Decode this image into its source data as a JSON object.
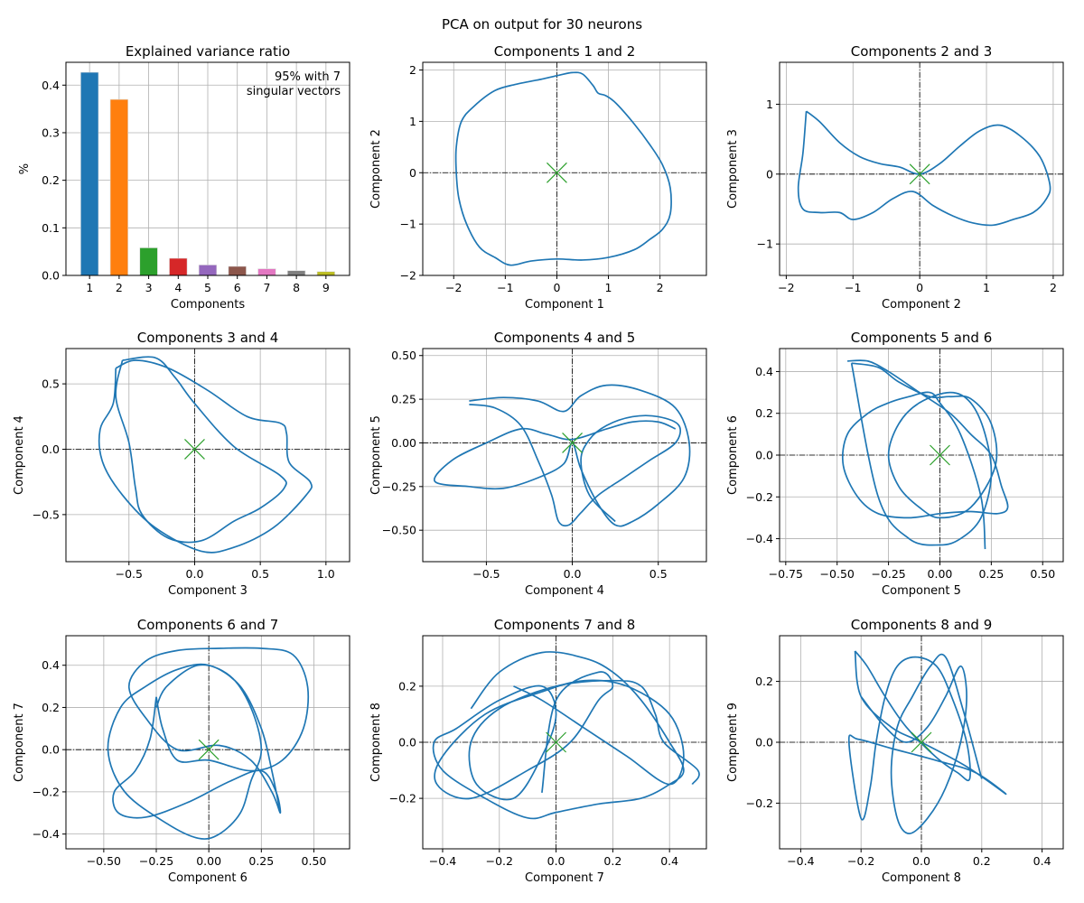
{
  "suptitle": "PCA on output for 30 neurons",
  "colors": {
    "trajectory": "#1f77b4",
    "origin_marker": "#2ca02c",
    "grid": "#b0b0b0",
    "axes": "#000000",
    "bars": [
      "#1f77b4",
      "#ff7f0e",
      "#2ca02c",
      "#d62728",
      "#9467bd",
      "#8c564b",
      "#e377c2",
      "#7f7f7f",
      "#bcbd22"
    ]
  },
  "chart_data": [
    {
      "type": "bar",
      "title": "Explained variance ratio",
      "xlabel": "Components",
      "ylabel": "%",
      "categories": [
        "1",
        "2",
        "3",
        "4",
        "5",
        "6",
        "7",
        "8",
        "9"
      ],
      "values": [
        0.427,
        0.37,
        0.058,
        0.036,
        0.022,
        0.019,
        0.014,
        0.01,
        0.008
      ],
      "xlim": [
        0.2,
        9.8
      ],
      "ylim": [
        0,
        0.448
      ],
      "yticks": [
        "0.0",
        "0.1",
        "0.2",
        "0.3",
        "0.4"
      ],
      "annotation": [
        "95% with 7",
        "singular vectors"
      ],
      "annotation_placement": "top-right",
      "grid": true
    },
    {
      "type": "line",
      "title": "Components 1 and 2",
      "xlabel": "Component 1",
      "ylabel": "Component 2",
      "xlim": [
        -2.6,
        2.9
      ],
      "ylim": [
        -2.0,
        2.15
      ],
      "xticks": [
        "−2",
        "−1",
        "0",
        "1",
        "2"
      ],
      "yticks": [
        "−2",
        "−1",
        "0",
        "1",
        "2"
      ],
      "grid": true,
      "origin_marker": "x",
      "series": [
        {
          "x": [
            -0.3,
            0.05,
            0.3,
            0.5,
            0.7,
            0.8,
            0.95,
            1.15,
            1.5,
            1.8,
            2.05,
            2.2,
            2.2,
            2.05,
            1.8,
            1.5,
            1.0,
            0.5,
            0.0,
            -0.5,
            -0.9,
            -1.2,
            -1.5,
            -1.75,
            -1.9,
            -1.95,
            -1.95,
            -1.85,
            -1.6,
            -1.2,
            -0.8,
            -0.3
          ],
          "y": [
            1.82,
            1.9,
            1.95,
            1.92,
            1.7,
            1.55,
            1.5,
            1.35,
            0.95,
            0.55,
            0.15,
            -0.3,
            -0.8,
            -1.1,
            -1.3,
            -1.5,
            -1.65,
            -1.7,
            -1.68,
            -1.72,
            -1.8,
            -1.65,
            -1.45,
            -1.0,
            -0.5,
            0.0,
            0.5,
            1.0,
            1.3,
            1.6,
            1.72,
            1.82
          ]
        }
      ]
    },
    {
      "type": "line",
      "title": "Components 2 and 3",
      "xlabel": "Component 2",
      "ylabel": "Component 3",
      "xlim": [
        -2.1,
        2.15
      ],
      "ylim": [
        -1.45,
        1.6
      ],
      "xticks": [
        "−2",
        "−1",
        "0",
        "1",
        "2"
      ],
      "yticks": [
        "−1",
        "0",
        "1"
      ],
      "grid": true,
      "origin_marker": "x",
      "series": [
        {
          "x": [
            -1.7,
            -1.5,
            -1.2,
            -0.9,
            -0.6,
            -0.3,
            0.0,
            0.3,
            0.6,
            0.9,
            1.2,
            1.5,
            1.8,
            1.95,
            1.9,
            1.7,
            1.4,
            1.1,
            0.8,
            0.5,
            0.2,
            -0.1,
            -0.4,
            -0.7,
            -1.0,
            -1.2,
            -1.5,
            -1.75,
            -1.82,
            -1.75,
            -1.7
          ],
          "y": [
            0.9,
            0.75,
            0.45,
            0.25,
            0.15,
            0.1,
            0.0,
            0.15,
            0.4,
            0.62,
            0.7,
            0.55,
            0.25,
            -0.15,
            -0.35,
            -0.55,
            -0.65,
            -0.73,
            -0.7,
            -0.6,
            -0.45,
            -0.25,
            -0.35,
            -0.55,
            -0.65,
            -0.55,
            -0.55,
            -0.5,
            -0.2,
            0.3,
            0.9
          ]
        }
      ]
    },
    {
      "type": "line",
      "title": "Components 3 and 4",
      "xlabel": "Component 3",
      "ylabel": "Component 4",
      "xlim": [
        -0.98,
        1.18
      ],
      "ylim": [
        -0.86,
        0.77
      ],
      "xticks": [
        "−0.5",
        "0.0",
        "0.5",
        "1.0"
      ],
      "yticks": [
        "−0.5",
        "0.0",
        "0.5"
      ],
      "grid": true,
      "origin_marker": "x",
      "series": [
        {
          "x": [
            -0.6,
            -0.45,
            -0.2,
            0.1,
            0.4,
            0.65,
            0.7,
            0.72,
            0.88,
            0.85,
            0.6,
            0.3,
            0.05,
            -0.3,
            -0.55,
            -0.7,
            -0.72,
            -0.62,
            -0.6
          ],
          "y": [
            0.62,
            0.68,
            0.62,
            0.45,
            0.25,
            0.2,
            0.12,
            -0.1,
            -0.25,
            -0.35,
            -0.6,
            -0.75,
            -0.78,
            -0.6,
            -0.35,
            -0.1,
            0.15,
            0.35,
            0.62
          ]
        },
        {
          "x": [
            -0.55,
            -0.3,
            -0.15,
            0.0,
            0.3,
            0.65,
            0.68,
            0.5,
            0.3,
            0.05,
            -0.2,
            -0.4,
            -0.45,
            -0.5,
            -0.6,
            -0.55
          ],
          "y": [
            0.68,
            0.7,
            0.55,
            0.35,
            0.02,
            -0.2,
            -0.3,
            -0.45,
            -0.55,
            -0.7,
            -0.68,
            -0.5,
            -0.3,
            0.05,
            0.4,
            0.68
          ]
        }
      ]
    },
    {
      "type": "line",
      "title": "Components 4 and 5",
      "xlabel": "Component 4",
      "ylabel": "Component 5",
      "xlim": [
        -0.87,
        0.78
      ],
      "ylim": [
        -0.68,
        0.54
      ],
      "xticks": [
        "−0.5",
        "0.0",
        "0.5"
      ],
      "yticks": [
        "−0.50",
        "−0.25",
        "0.00",
        "0.25",
        "0.50"
      ],
      "grid": true,
      "origin_marker": "x",
      "series": [
        {
          "x": [
            -0.6,
            -0.4,
            -0.2,
            -0.05,
            0.05,
            0.2,
            0.4,
            0.6,
            0.68,
            0.65,
            0.5,
            0.35,
            0.25,
            0.15,
            0.05,
            0.0,
            -0.05,
            -0.2,
            -0.4,
            -0.6,
            -0.8,
            -0.7,
            -0.5,
            -0.3,
            -0.15,
            0.0,
            0.2,
            0.35,
            0.5,
            0.6
          ],
          "y": [
            0.24,
            0.26,
            0.24,
            0.18,
            0.27,
            0.33,
            0.3,
            0.2,
            0.0,
            -0.2,
            -0.35,
            -0.45,
            -0.47,
            -0.35,
            -0.15,
            0.0,
            -0.12,
            -0.2,
            -0.26,
            -0.25,
            -0.22,
            -0.1,
            0.0,
            0.08,
            0.05,
            0.02,
            0.08,
            0.12,
            0.12,
            0.08
          ]
        },
        {
          "x": [
            -0.6,
            -0.45,
            -0.3,
            -0.2,
            -0.12,
            -0.08,
            -0.02,
            0.05,
            0.15,
            0.3,
            0.45,
            0.6,
            0.62,
            0.5,
            0.35,
            0.2,
            0.1,
            0.05,
            0.1,
            0.25
          ],
          "y": [
            0.22,
            0.2,
            0.1,
            -0.1,
            -0.3,
            -0.45,
            -0.47,
            -0.4,
            -0.3,
            -0.2,
            -0.1,
            0.0,
            0.1,
            0.15,
            0.15,
            0.1,
            0.02,
            -0.1,
            -0.3,
            -0.45
          ]
        }
      ]
    },
    {
      "type": "line",
      "title": "Components 5 and 6",
      "xlabel": "Component 5",
      "ylabel": "Component 6",
      "xlim": [
        -0.78,
        0.6
      ],
      "ylim": [
        -0.51,
        0.51
      ],
      "xticks": [
        "−0.75",
        "−0.50",
        "−0.25",
        "0.00",
        "0.25",
        "0.50"
      ],
      "yticks": [
        "−0.4",
        "−0.2",
        "0.0",
        "0.2",
        "0.4"
      ],
      "grid": true,
      "origin_marker": "x",
      "series": [
        {
          "x": [
            -0.45,
            -0.35,
            -0.25,
            -0.1,
            0.05,
            0.15,
            0.25,
            0.3,
            0.33,
            0.28,
            0.15,
            0.0,
            -0.15,
            -0.3,
            -0.4,
            -0.47,
            -0.45,
            -0.35,
            -0.25,
            -0.15,
            -0.05,
            0.0,
            0.1,
            0.2,
            0.22
          ],
          "y": [
            0.45,
            0.45,
            0.4,
            0.3,
            0.2,
            0.1,
            0.0,
            -0.15,
            -0.25,
            -0.28,
            -0.27,
            -0.28,
            -0.3,
            -0.28,
            -0.2,
            -0.05,
            0.1,
            0.2,
            0.25,
            0.28,
            0.3,
            0.25,
            0.1,
            -0.2,
            -0.45
          ]
        },
        {
          "x": [
            -0.43,
            -0.3,
            -0.2,
            -0.05,
            0.05,
            0.15,
            0.25,
            0.27,
            0.15,
            0.0,
            -0.1,
            -0.2,
            -0.25,
            -0.2,
            -0.1,
            0.05,
            0.15,
            0.22,
            0.25,
            0.2,
            0.1,
            0.0,
            -0.15,
            -0.3,
            -0.43
          ],
          "y": [
            0.44,
            0.42,
            0.35,
            0.28,
            0.28,
            0.27,
            0.15,
            -0.05,
            -0.25,
            -0.3,
            -0.25,
            -0.15,
            0.0,
            0.15,
            0.25,
            0.3,
            0.25,
            0.1,
            -0.1,
            -0.3,
            -0.4,
            -0.43,
            -0.4,
            -0.2,
            0.44
          ]
        }
      ]
    },
    {
      "type": "line",
      "title": "Components 6 and 7",
      "xlabel": "Component 6",
      "ylabel": "Component 7",
      "xlim": [
        -0.68,
        0.67
      ],
      "ylim": [
        -0.47,
        0.54
      ],
      "xticks": [
        "−0.50",
        "−0.25",
        "0.00",
        "0.25",
        "0.50"
      ],
      "yticks": [
        "−0.4",
        "−0.2",
        "0.0",
        "0.2",
        "0.4"
      ],
      "grid": true,
      "origin_marker": "x",
      "series": [
        {
          "x": [
            -0.25,
            -0.28,
            -0.35,
            -0.45,
            -0.43,
            -0.3,
            -0.1,
            0.1,
            0.25,
            0.32,
            0.34,
            0.3,
            0.2,
            0.05,
            -0.15,
            -0.3,
            -0.38,
            -0.3,
            -0.15,
            0.05,
            0.25,
            0.4,
            0.47,
            0.45,
            0.35,
            0.2,
            0.0,
            -0.15,
            -0.22,
            -0.25
          ],
          "y": [
            0.25,
            0.05,
            -0.1,
            -0.2,
            -0.3,
            -0.32,
            -0.25,
            -0.15,
            -0.1,
            -0.2,
            -0.3,
            -0.2,
            -0.05,
            0.02,
            0.0,
            0.15,
            0.3,
            0.42,
            0.47,
            0.48,
            0.48,
            0.45,
            0.3,
            0.1,
            -0.05,
            -0.1,
            -0.05,
            -0.05,
            0.1,
            0.25
          ]
        },
        {
          "x": [
            -0.25,
            -0.2,
            -0.05,
            0.1,
            0.2,
            0.25,
            0.2,
            0.15,
            0.05,
            -0.05,
            -0.2,
            -0.4,
            -0.48,
            -0.42,
            -0.3,
            -0.15,
            0.0,
            0.15,
            0.25,
            0.3,
            0.34
          ],
          "y": [
            0.2,
            0.3,
            0.4,
            0.35,
            0.2,
            0.0,
            -0.15,
            -0.3,
            -0.4,
            -0.42,
            -0.35,
            -0.2,
            0.0,
            0.2,
            0.3,
            0.38,
            0.4,
            0.3,
            0.1,
            -0.1,
            -0.3
          ]
        }
      ]
    },
    {
      "type": "line",
      "title": "Components 7 and 8",
      "xlabel": "Component 7",
      "ylabel": "Component 8",
      "xlim": [
        -0.47,
        0.53
      ],
      "ylim": [
        -0.38,
        0.38
      ],
      "xticks": [
        "−0.4",
        "−0.2",
        "0.0",
        "0.2",
        "0.4"
      ],
      "yticks": [
        "−0.2",
        "0.0",
        "0.2"
      ],
      "grid": true,
      "origin_marker": "x",
      "series": [
        {
          "x": [
            -0.3,
            -0.2,
            -0.05,
            0.1,
            0.2,
            0.3,
            0.4,
            0.45,
            0.4,
            0.3,
            0.15,
            0.0,
            -0.1,
            -0.25,
            -0.4,
            -0.43,
            -0.35,
            -0.2,
            -0.05,
            0.0,
            -0.05,
            -0.15,
            -0.28,
            -0.3,
            -0.2,
            0.0,
            0.2,
            0.3,
            0.35,
            0.38,
            0.5,
            0.48
          ],
          "y": [
            0.12,
            0.25,
            0.32,
            0.3,
            0.25,
            0.15,
            0.0,
            -0.1,
            -0.15,
            -0.2,
            -0.22,
            -0.25,
            -0.27,
            -0.2,
            -0.1,
            0.0,
            0.05,
            0.15,
            0.2,
            0.1,
            -0.05,
            -0.2,
            -0.15,
            0.0,
            0.12,
            0.2,
            0.22,
            0.2,
            0.1,
            0.0,
            -0.1,
            -0.15
          ]
        },
        {
          "x": [
            -0.15,
            -0.05,
            0.1,
            0.25,
            0.4,
            0.45,
            0.4,
            0.25,
            0.1,
            -0.05,
            -0.25,
            -0.4,
            -0.42,
            -0.3,
            -0.1,
            0.05,
            0.15,
            0.2,
            0.15,
            0.0,
            -0.05
          ],
          "y": [
            0.2,
            0.15,
            0.05,
            -0.05,
            -0.15,
            -0.05,
            0.1,
            0.2,
            0.22,
            0.18,
            0.1,
            -0.05,
            -0.15,
            -0.2,
            -0.1,
            0.0,
            0.15,
            0.2,
            0.25,
            0.15,
            -0.18
          ]
        }
      ]
    },
    {
      "type": "line",
      "title": "Components 8 and 9",
      "xlabel": "Component 8",
      "ylabel": "Component 9",
      "xlim": [
        -0.47,
        0.47
      ],
      "ylim": [
        -0.35,
        0.35
      ],
      "xticks": [
        "−0.4",
        "−0.2",
        "0.0",
        "0.2",
        "0.4"
      ],
      "yticks": [
        "−0.2",
        "0.0",
        "0.2"
      ],
      "grid": true,
      "origin_marker": "x",
      "series": [
        {
          "x": [
            -0.22,
            -0.18,
            -0.12,
            -0.05,
            0.05,
            0.12,
            0.16,
            0.15,
            0.1,
            0.05,
            -0.02,
            -0.08,
            -0.12,
            -0.15,
            -0.17,
            -0.2,
            -0.24,
            -0.21,
            -0.1,
            0.05,
            0.18,
            0.28,
            0.15,
            0.0,
            -0.1,
            -0.2,
            -0.22
          ],
          "y": [
            0.3,
            0.25,
            0.15,
            0.05,
            -0.05,
            -0.1,
            -0.12,
            0.0,
            0.15,
            0.25,
            0.28,
            0.25,
            0.15,
            0.0,
            -0.15,
            -0.25,
            0.0,
            0.01,
            -0.02,
            -0.06,
            -0.1,
            -0.17,
            -0.08,
            0.0,
            0.05,
            0.15,
            0.3
          ]
        },
        {
          "x": [
            -0.2,
            -0.12,
            -0.05,
            0.02,
            0.08,
            0.13,
            0.15,
            0.13,
            0.08,
            0.02,
            -0.04,
            -0.08,
            -0.1,
            -0.08,
            -0.03,
            0.03,
            0.08,
            0.14,
            0.2
          ],
          "y": [
            0.15,
            0.05,
            0.0,
            0.05,
            0.15,
            0.25,
            0.15,
            0.0,
            -0.15,
            -0.25,
            -0.3,
            -0.25,
            -0.1,
            0.05,
            0.15,
            0.25,
            0.28,
            0.1,
            -0.12
          ]
        }
      ]
    }
  ]
}
